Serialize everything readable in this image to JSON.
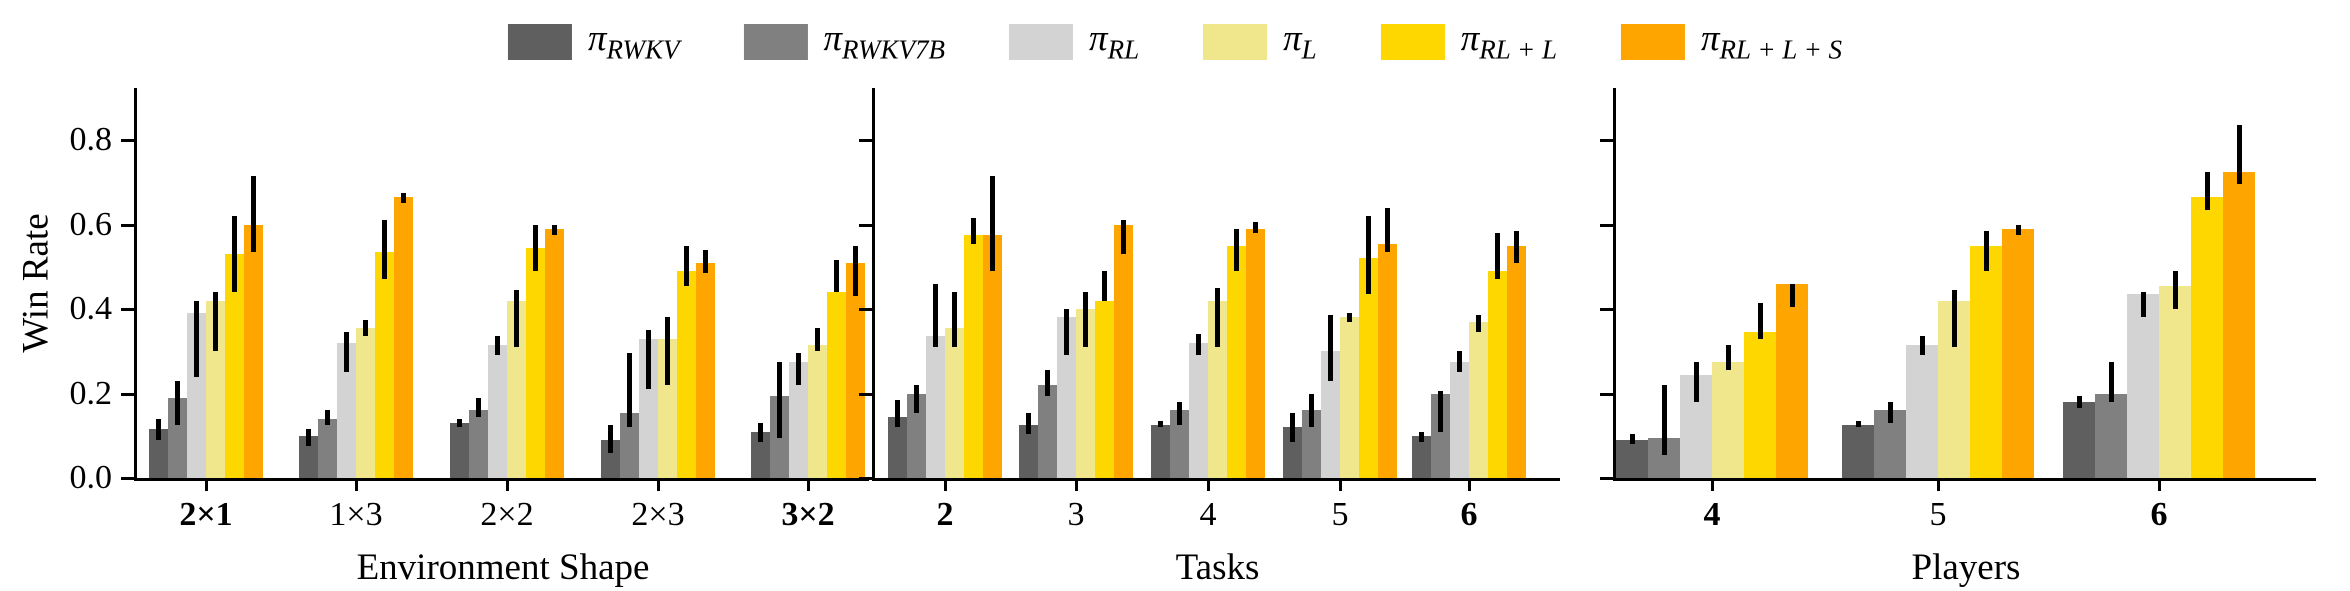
{
  "figure": {
    "ylabel": "Win Rate",
    "ytick_labels": [
      "0.0",
      "0.2",
      "0.4",
      "0.6",
      "0.8"
    ],
    "background_color": "#ffffff",
    "legend": [
      {
        "symbol": "π",
        "subscript": "RWKV",
        "color": "#5F5F5F"
      },
      {
        "symbol": "π",
        "subscript": "RWKV7B",
        "color": "#808080"
      },
      {
        "symbol": "π",
        "subscript": "RL",
        "color": "#D3D3D3"
      },
      {
        "symbol": "π",
        "subscript": "L",
        "color": "#F0E68C"
      },
      {
        "symbol": "π",
        "subscript": "RL + L",
        "color": "#FFD700"
      },
      {
        "symbol": "π",
        "subscript": "RL + L + S",
        "color": "#FFA500"
      }
    ]
  },
  "chart_data": [
    {
      "type": "bar",
      "xlabel": "Environment Shape",
      "ylabel": "Win Rate",
      "ylim": [
        0,
        0.85
      ],
      "grid": false,
      "legend_position": "top-center",
      "categories": [
        "2×1",
        "1×3",
        "2×2",
        "2×3",
        "3×2"
      ],
      "bold_categories": [
        "2×1",
        "3×2"
      ],
      "series": [
        {
          "name": "π_RWKV",
          "color": "#5F5F5F",
          "values": [
            0.115,
            0.1,
            0.13,
            0.09,
            0.11
          ],
          "err_lo": [
            0.09,
            0.075,
            0.12,
            0.06,
            0.085
          ],
          "err_hi": [
            0.14,
            0.115,
            0.14,
            0.125,
            0.13
          ]
        },
        {
          "name": "π_RWKV7B",
          "color": "#808080",
          "values": [
            0.19,
            0.14,
            0.16,
            0.155,
            0.195
          ],
          "err_lo": [
            0.125,
            0.125,
            0.145,
            0.12,
            0.095
          ],
          "err_hi": [
            0.23,
            0.16,
            0.19,
            0.295,
            0.275
          ]
        },
        {
          "name": "π_RL",
          "color": "#D3D3D3",
          "values": [
            0.39,
            0.32,
            0.315,
            0.33,
            0.275
          ],
          "err_lo": [
            0.24,
            0.25,
            0.29,
            0.21,
            0.22
          ],
          "err_hi": [
            0.42,
            0.345,
            0.335,
            0.35,
            0.295
          ]
        },
        {
          "name": "π_L",
          "color": "#F0E68C",
          "values": [
            0.42,
            0.355,
            0.42,
            0.33,
            0.315
          ],
          "err_lo": [
            0.3,
            0.335,
            0.31,
            0.22,
            0.3
          ],
          "err_hi": [
            0.44,
            0.375,
            0.445,
            0.38,
            0.355
          ]
        },
        {
          "name": "π_RL+L",
          "color": "#FFD700",
          "values": [
            0.53,
            0.535,
            0.545,
            0.49,
            0.44
          ],
          "err_lo": [
            0.44,
            0.47,
            0.49,
            0.455,
            0.44
          ],
          "err_hi": [
            0.62,
            0.61,
            0.6,
            0.55,
            0.515
          ]
        },
        {
          "name": "π_RL+L+S",
          "color": "#FFA500",
          "values": [
            0.6,
            0.665,
            0.59,
            0.51,
            0.51
          ],
          "err_lo": [
            0.535,
            0.65,
            0.575,
            0.485,
            0.43
          ],
          "err_hi": [
            0.715,
            0.675,
            0.6,
            0.54,
            0.55
          ]
        }
      ]
    },
    {
      "type": "bar",
      "xlabel": "Tasks",
      "ylabel": "Win Rate",
      "ylim": [
        0,
        0.85
      ],
      "grid": false,
      "categories": [
        "2",
        "3",
        "4",
        "5",
        "6"
      ],
      "bold_categories": [
        "2",
        "6"
      ],
      "series": [
        {
          "name": "π_RWKV",
          "color": "#5F5F5F",
          "values": [
            0.145,
            0.125,
            0.125,
            0.12,
            0.1
          ],
          "err_lo": [
            0.12,
            0.105,
            0.12,
            0.085,
            0.085
          ],
          "err_hi": [
            0.185,
            0.155,
            0.135,
            0.155,
            0.11
          ]
        },
        {
          "name": "π_RWKV7B",
          "color": "#808080",
          "values": [
            0.2,
            0.22,
            0.16,
            0.16,
            0.2
          ],
          "err_lo": [
            0.155,
            0.195,
            0.125,
            0.12,
            0.11
          ],
          "err_hi": [
            0.22,
            0.255,
            0.18,
            0.2,
            0.205
          ]
        },
        {
          "name": "π_RL",
          "color": "#D3D3D3",
          "values": [
            0.335,
            0.38,
            0.32,
            0.3,
            0.275
          ],
          "err_lo": [
            0.31,
            0.29,
            0.29,
            0.23,
            0.25
          ],
          "err_hi": [
            0.46,
            0.4,
            0.34,
            0.385,
            0.3
          ]
        },
        {
          "name": "π_L",
          "color": "#F0E68C",
          "values": [
            0.355,
            0.4,
            0.42,
            0.38,
            0.37
          ],
          "err_lo": [
            0.31,
            0.31,
            0.31,
            0.37,
            0.345
          ],
          "err_hi": [
            0.44,
            0.44,
            0.45,
            0.39,
            0.385
          ]
        },
        {
          "name": "π_RL+L",
          "color": "#FFD700",
          "values": [
            0.575,
            0.42,
            0.55,
            0.52,
            0.49
          ],
          "err_lo": [
            0.555,
            0.42,
            0.49,
            0.435,
            0.47
          ],
          "err_hi": [
            0.615,
            0.49,
            0.59,
            0.62,
            0.58
          ]
        },
        {
          "name": "π_RL+L+S",
          "color": "#FFA500",
          "values": [
            0.575,
            0.6,
            0.59,
            0.555,
            0.55
          ],
          "err_lo": [
            0.49,
            0.53,
            0.58,
            0.535,
            0.51
          ],
          "err_hi": [
            0.715,
            0.61,
            0.605,
            0.64,
            0.585
          ]
        }
      ]
    },
    {
      "type": "bar",
      "xlabel": "Players",
      "ylabel": "Win Rate",
      "ylim": [
        0,
        0.85
      ],
      "grid": false,
      "categories": [
        "4",
        "5",
        "6"
      ],
      "bold_categories": [
        "4",
        "6"
      ],
      "series": [
        {
          "name": "π_RWKV",
          "color": "#5F5F5F",
          "values": [
            0.09,
            0.125,
            0.18
          ],
          "err_lo": [
            0.08,
            0.12,
            0.165
          ],
          "err_hi": [
            0.105,
            0.135,
            0.195
          ]
        },
        {
          "name": "π_RWKV7B",
          "color": "#808080",
          "values": [
            0.095,
            0.16,
            0.2
          ],
          "err_lo": [
            0.055,
            0.13,
            0.18
          ],
          "err_hi": [
            0.22,
            0.18,
            0.275
          ]
        },
        {
          "name": "π_RL",
          "color": "#D3D3D3",
          "values": [
            0.245,
            0.315,
            0.435
          ],
          "err_lo": [
            0.18,
            0.29,
            0.38
          ],
          "err_hi": [
            0.275,
            0.335,
            0.44
          ]
        },
        {
          "name": "π_L",
          "color": "#F0E68C",
          "values": [
            0.275,
            0.42,
            0.455
          ],
          "err_lo": [
            0.255,
            0.31,
            0.4
          ],
          "err_hi": [
            0.315,
            0.445,
            0.49
          ]
        },
        {
          "name": "π_RL+L",
          "color": "#FFD700",
          "values": [
            0.345,
            0.55,
            0.665
          ],
          "err_lo": [
            0.33,
            0.49,
            0.635
          ],
          "err_hi": [
            0.415,
            0.585,
            0.725
          ]
        },
        {
          "name": "π_RL+L+S",
          "color": "#FFA500",
          "values": [
            0.46,
            0.59,
            0.725
          ],
          "err_lo": [
            0.405,
            0.575,
            0.695
          ],
          "err_hi": [
            0.46,
            0.6,
            0.835
          ]
        }
      ]
    }
  ]
}
